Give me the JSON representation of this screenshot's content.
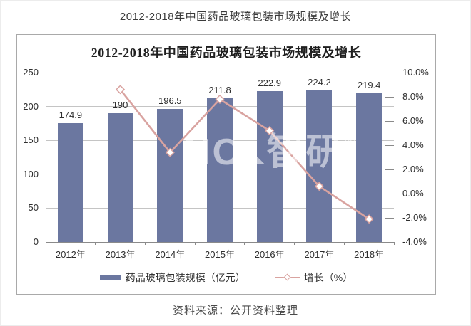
{
  "header": {
    "title": "2012-2018年中国药品玻璃包装市场规模及增长"
  },
  "footer": {
    "source": "资料来源：公开资料整理"
  },
  "watermark": {
    "text_left": "NC",
    "triangle": "◣",
    "text_right": "智研",
    "registered": "®"
  },
  "colors": {
    "bar": "#6b77a0",
    "line": "#d9a3a0",
    "grid": "#c4c4c4",
    "axis": "#8a8a8a",
    "border": "#a9a9a9"
  },
  "chart_data": {
    "type": "bar",
    "title": "2012-2018年中国药品玻璃包装市场规模及增长",
    "categories": [
      "2012年",
      "2013年",
      "2014年",
      "2015年",
      "2016年",
      "2017年",
      "2018年"
    ],
    "series": [
      {
        "name": "药品玻璃包装规模（亿元）",
        "type": "bar",
        "axis": "left",
        "color": "#6b77a0",
        "values": [
          174.9,
          190,
          196.5,
          211.8,
          222.9,
          224.2,
          219.4
        ],
        "labels": [
          "174.9",
          "190",
          "196.5",
          "211.8",
          "222.9",
          "224.2",
          "219.4"
        ]
      },
      {
        "name": "增长（%）",
        "type": "line",
        "axis": "right",
        "marker": "diamond",
        "color": "#d9a3a0",
        "values": [
          null,
          8.6,
          3.4,
          7.8,
          5.2,
          0.6,
          -2.1
        ]
      }
    ],
    "left_axis": {
      "min": 0,
      "max": 250,
      "tick_values": [
        0,
        50,
        100,
        150,
        200,
        250
      ],
      "tick_labels": [
        "0",
        "50",
        "100",
        "150",
        "200",
        "250"
      ]
    },
    "right_axis": {
      "min": -4,
      "max": 10,
      "tick_values": [
        -4,
        -2,
        0,
        2,
        4,
        6,
        8,
        10
      ],
      "tick_labels": [
        "-4.0%",
        "-2.0%",
        "0.0%",
        "2.0%",
        "4.0%",
        "6.0%",
        "8.0%",
        "10.0%"
      ]
    },
    "grid": true,
    "legend_position": "bottom"
  }
}
